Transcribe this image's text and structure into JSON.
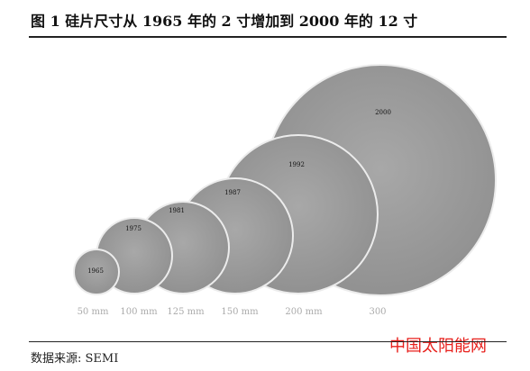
{
  "header": {
    "title": "图 1 硅片尺寸从 1965 年的 2 寸增加到 2000 年的 12 寸"
  },
  "wafers": [
    {
      "year": "1965",
      "size": "50 mm"
    },
    {
      "year": "1975",
      "size": "100 mm"
    },
    {
      "year": "1981",
      "size": "125 mm"
    },
    {
      "year": "1987",
      "size": "150 mm"
    },
    {
      "year": "1992",
      "size": "200 mm"
    },
    {
      "year": "2000",
      "size": "300"
    }
  ],
  "footer": {
    "source": "数据来源: SEMI"
  },
  "watermark": {
    "text": "中国太阳能网"
  },
  "colors": {
    "wafer_fill": "#9c9c9c",
    "wafer_stroke": "#e6e6e6",
    "size_label": "#aaaaaa",
    "watermark": "#e8201c"
  }
}
